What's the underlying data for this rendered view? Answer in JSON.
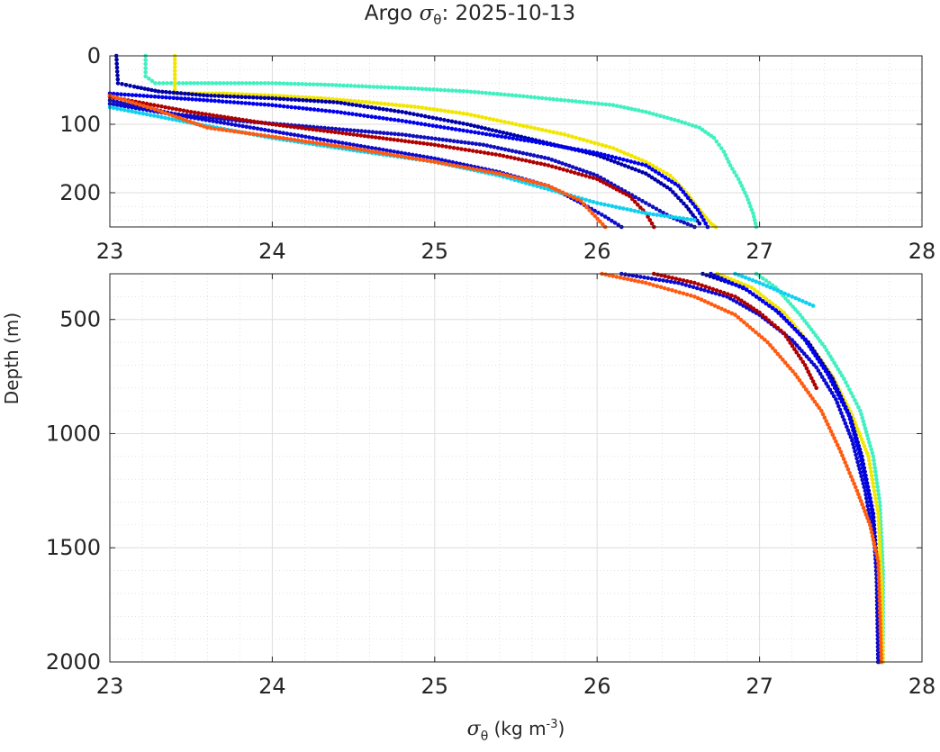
{
  "title": {
    "prefix": "Argo ",
    "symbol": "σ",
    "subscript": "θ",
    "suffix": ": 2025-10-13"
  },
  "chart_data": [
    {
      "type": "scatter",
      "panel": "top",
      "title": "Argo σθ: 2025-10-13",
      "xlabel": "",
      "ylabel": "Depth (m)",
      "xlim": [
        23,
        28
      ],
      "ylim": [
        0,
        250
      ],
      "y_reversed": true,
      "grid": true,
      "xticks": [
        23,
        24,
        25,
        26,
        27,
        28
      ],
      "yticks": [
        0,
        100,
        200
      ],
      "series": [
        {
          "name": "aquamarine",
          "color": "#40f0c0",
          "points": [
            [
              23.22,
              0
            ],
            [
              23.22,
              30
            ],
            [
              23.28,
              40
            ],
            [
              23.45,
              40
            ],
            [
              23.7,
              40
            ],
            [
              24.0,
              40
            ],
            [
              24.3,
              42
            ],
            [
              24.6,
              45
            ],
            [
              24.9,
              48
            ],
            [
              25.2,
              52
            ],
            [
              25.5,
              58
            ],
            [
              25.8,
              65
            ],
            [
              26.1,
              72
            ],
            [
              26.3,
              82
            ],
            [
              26.5,
              95
            ],
            [
              26.63,
              105
            ],
            [
              26.72,
              120
            ],
            [
              26.78,
              140
            ],
            [
              26.82,
              160
            ],
            [
              26.87,
              180
            ],
            [
              26.92,
              205
            ],
            [
              26.96,
              230
            ],
            [
              26.98,
              250
            ]
          ]
        },
        {
          "name": "yellow",
          "color": "#f2e600",
          "points": [
            [
              23.4,
              0
            ],
            [
              23.4,
              55
            ],
            [
              23.7,
              55
            ],
            [
              24.0,
              58
            ],
            [
              24.3,
              62
            ],
            [
              24.6,
              68
            ],
            [
              24.9,
              75
            ],
            [
              25.2,
              85
            ],
            [
              25.5,
              100
            ],
            [
              25.8,
              115
            ],
            [
              26.1,
              135
            ],
            [
              26.3,
              155
            ],
            [
              26.45,
              175
            ],
            [
              26.55,
              200
            ],
            [
              26.63,
              225
            ],
            [
              26.7,
              245
            ],
            [
              26.73,
              250
            ]
          ]
        },
        {
          "name": "navy",
          "color": "#0000a8",
          "points": [
            [
              23.04,
              0
            ],
            [
              23.05,
              40
            ],
            [
              23.15,
              45
            ],
            [
              23.3,
              52
            ],
            [
              23.6,
              58
            ],
            [
              24.0,
              62
            ],
            [
              24.4,
              68
            ],
            [
              24.8,
              82
            ],
            [
              25.2,
              100
            ],
            [
              25.6,
              122
            ],
            [
              26.0,
              145
            ],
            [
              26.3,
              172
            ],
            [
              26.45,
              195
            ],
            [
              26.55,
              220
            ],
            [
              26.63,
              245
            ]
          ]
        },
        {
          "name": "blue",
          "color": "#0000ee",
          "points": [
            [
              23.0,
              55
            ],
            [
              23.3,
              60
            ],
            [
              23.6,
              65
            ],
            [
              24.0,
              72
            ],
            [
              24.4,
              82
            ],
            [
              24.8,
              95
            ],
            [
              25.2,
              110
            ],
            [
              25.6,
              125
            ],
            [
              26.0,
              142
            ],
            [
              26.3,
              160
            ],
            [
              26.5,
              190
            ],
            [
              26.62,
              225
            ],
            [
              26.68,
              250
            ]
          ]
        },
        {
          "name": "darkblue",
          "color": "#1010c0",
          "points": [
            [
              23.0,
              65
            ],
            [
              23.4,
              85
            ],
            [
              23.8,
              95
            ],
            [
              24.3,
              105
            ],
            [
              24.8,
              115
            ],
            [
              25.3,
              130
            ],
            [
              25.7,
              150
            ],
            [
              26.0,
              175
            ],
            [
              26.15,
              195
            ],
            [
              26.3,
              215
            ],
            [
              26.45,
              235
            ],
            [
              26.6,
              250
            ]
          ]
        },
        {
          "name": "darkred",
          "color": "#b00000",
          "points": [
            [
              23.0,
              60
            ],
            [
              23.5,
              82
            ],
            [
              24.0,
              100
            ],
            [
              24.5,
              115
            ],
            [
              25.0,
              130
            ],
            [
              25.4,
              145
            ],
            [
              25.7,
              160
            ],
            [
              26.0,
              180
            ],
            [
              26.2,
              205
            ],
            [
              26.3,
              230
            ],
            [
              26.35,
              250
            ]
          ]
        },
        {
          "name": "royalblue",
          "color": "#0a0ad0",
          "points": [
            [
              23.0,
              70
            ],
            [
              23.5,
              90
            ],
            [
              24.0,
              110
            ],
            [
              24.5,
              130
            ],
            [
              25.0,
              150
            ],
            [
              25.4,
              170
            ],
            [
              25.7,
              190
            ],
            [
              25.9,
              215
            ],
            [
              26.05,
              235
            ],
            [
              26.15,
              250
            ]
          ]
        },
        {
          "name": "cyan",
          "color": "#10d0f0",
          "points": [
            [
              23.0,
              75
            ],
            [
              23.5,
              98
            ],
            [
              24.0,
              120
            ],
            [
              24.5,
              138
            ],
            [
              25.0,
              155
            ],
            [
              25.4,
              175
            ],
            [
              25.7,
              195
            ],
            [
              26.0,
              215
            ],
            [
              26.3,
              230
            ],
            [
              26.6,
              240
            ]
          ]
        },
        {
          "name": "orange",
          "color": "#ff5a10",
          "points": [
            [
              23.0,
              58
            ],
            [
              23.3,
              80
            ],
            [
              23.6,
              105
            ],
            [
              24.0,
              118
            ],
            [
              24.5,
              135
            ],
            [
              25.0,
              155
            ],
            [
              25.4,
              172
            ],
            [
              25.7,
              190
            ],
            [
              25.9,
              212
            ],
            [
              25.97,
              230
            ],
            [
              26.05,
              250
            ]
          ]
        }
      ]
    },
    {
      "type": "scatter",
      "panel": "bottom",
      "xlabel": "σθ (kg m-3)",
      "ylabel": "Depth (m)",
      "xlim": [
        23,
        28
      ],
      "ylim": [
        300,
        2000
      ],
      "y_reversed": true,
      "grid": true,
      "xticks": [
        23,
        24,
        25,
        26,
        27,
        28
      ],
      "yticks": [
        500,
        1000,
        1500,
        2000
      ],
      "series": [
        {
          "name": "aquamarine",
          "color": "#40f0c0",
          "points": [
            [
              26.98,
              300
            ],
            [
              27.1,
              360
            ],
            [
              27.25,
              480
            ],
            [
              27.4,
              620
            ],
            [
              27.52,
              760
            ],
            [
              27.62,
              900
            ],
            [
              27.7,
              1100
            ],
            [
              27.74,
              1300
            ],
            [
              27.76,
              1600
            ],
            [
              27.76,
              2000
            ]
          ]
        },
        {
          "name": "yellow",
          "color": "#f2e600",
          "points": [
            [
              26.74,
              300
            ],
            [
              26.95,
              360
            ],
            [
              27.15,
              470
            ],
            [
              27.3,
              600
            ],
            [
              27.45,
              750
            ],
            [
              27.57,
              920
            ],
            [
              27.67,
              1100
            ],
            [
              27.73,
              1350
            ],
            [
              27.75,
              1650
            ],
            [
              27.76,
              2000
            ]
          ]
        },
        {
          "name": "cyan",
          "color": "#10d0f0",
          "points": [
            [
              26.85,
              300
            ],
            [
              27.0,
              340
            ],
            [
              27.2,
              400
            ],
            [
              27.33,
              440
            ]
          ]
        },
        {
          "name": "navy",
          "color": "#0000a8",
          "points": [
            [
              26.65,
              300
            ],
            [
              26.9,
              360
            ],
            [
              27.1,
              460
            ],
            [
              27.3,
              600
            ],
            [
              27.45,
              760
            ],
            [
              27.56,
              930
            ],
            [
              27.63,
              1100
            ],
            [
              27.7,
              1350
            ],
            [
              27.73,
              1650
            ],
            [
              27.74,
              2000
            ]
          ]
        },
        {
          "name": "blue",
          "color": "#0000ee",
          "points": [
            [
              26.7,
              300
            ],
            [
              26.92,
              370
            ],
            [
              27.12,
              470
            ],
            [
              27.28,
              590
            ],
            [
              27.42,
              740
            ],
            [
              27.55,
              920
            ],
            [
              27.62,
              1100
            ],
            [
              27.69,
              1330
            ],
            [
              27.72,
              1600
            ],
            [
              27.73,
              2000
            ]
          ]
        },
        {
          "name": "royalblue",
          "color": "#0a0ad0",
          "points": [
            [
              26.15,
              300
            ],
            [
              26.5,
              340
            ],
            [
              26.8,
              400
            ],
            [
              27.0,
              480
            ],
            [
              27.2,
              590
            ],
            [
              27.35,
              710
            ],
            [
              27.47,
              850
            ],
            [
              27.57,
              1030
            ],
            [
              27.65,
              1250
            ],
            [
              27.71,
              1500
            ],
            [
              27.73,
              1750
            ],
            [
              27.73,
              2000
            ]
          ]
        },
        {
          "name": "darkred",
          "color": "#b00000",
          "points": [
            [
              26.35,
              300
            ],
            [
              26.6,
              340
            ],
            [
              26.85,
              400
            ],
            [
              27.0,
              470
            ],
            [
              27.15,
              560
            ],
            [
              27.28,
              700
            ],
            [
              27.35,
              800
            ]
          ]
        },
        {
          "name": "orange",
          "color": "#ff5a10",
          "points": [
            [
              26.03,
              300
            ],
            [
              26.3,
              340
            ],
            [
              26.6,
              400
            ],
            [
              26.85,
              480
            ],
            [
              27.05,
              600
            ],
            [
              27.22,
              740
            ],
            [
              27.38,
              900
            ],
            [
              27.5,
              1080
            ],
            [
              27.6,
              1250
            ],
            [
              27.68,
              1400
            ],
            [
              27.73,
              1560
            ],
            [
              27.74,
              1750
            ],
            [
              27.75,
              2000
            ]
          ]
        }
      ]
    }
  ],
  "labels": {
    "ylabel": "Depth (m)",
    "xlabel_symbol": "σ",
    "xlabel_subscript": "θ",
    "xlabel_units_pre": " (kg m",
    "xlabel_units_sup": "-3",
    "xlabel_units_post": ")"
  }
}
